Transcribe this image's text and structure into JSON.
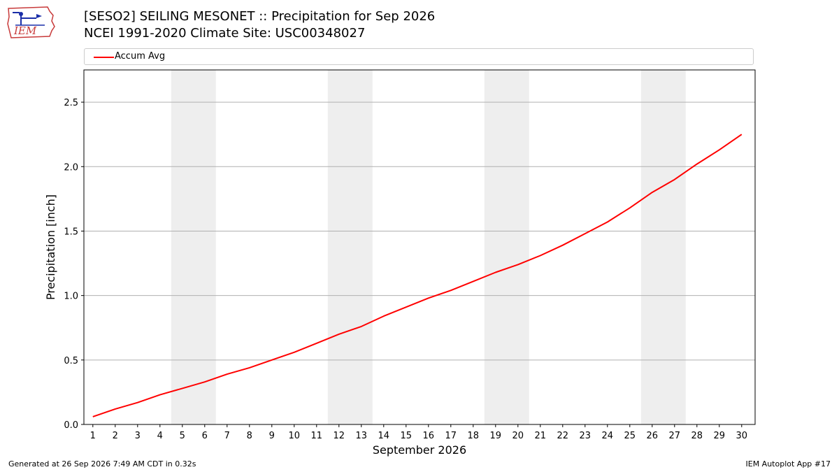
{
  "header": {
    "title_line1": "[SESO2] SEILING MESONET :: Precipitation for Sep 2026",
    "title_line2": "NCEI 1991-2020 Climate Site: USC00348027"
  },
  "logo": {
    "text": "IEM",
    "icon": "iem-iowa-logo"
  },
  "footer": {
    "generated": "Generated at 26 Sep 2026 7:49 AM CDT in 0.32s",
    "app": "IEM Autoplot App #17"
  },
  "chart_data": {
    "type": "line",
    "xlabel": "September 2026",
    "ylabel": "Precipitation [inch]",
    "x": [
      1,
      2,
      3,
      4,
      5,
      6,
      7,
      8,
      9,
      10,
      11,
      12,
      13,
      14,
      15,
      16,
      17,
      18,
      19,
      20,
      21,
      22,
      23,
      24,
      25,
      26,
      27,
      28,
      29,
      30
    ],
    "xlim": [
      0.6,
      30.6
    ],
    "ylim": [
      0,
      2.75
    ],
    "yticks": [
      0.0,
      0.5,
      1.0,
      1.5,
      2.0,
      2.5
    ],
    "ytick_labels": [
      "0.0",
      "0.5",
      "1.0",
      "1.5",
      "2.0",
      "2.5"
    ],
    "grid": "horizontal",
    "legend_position": "top",
    "weekend_shading": [
      [
        5,
        6
      ],
      [
        12,
        13
      ],
      [
        19,
        20
      ],
      [
        26,
        27
      ]
    ],
    "colors": {
      "line": "#ff0000",
      "shade": "#eeeeee",
      "grid": "#b0b0b0"
    },
    "series": [
      {
        "name": "Accum Avg",
        "values": [
          0.06,
          0.12,
          0.17,
          0.23,
          0.28,
          0.33,
          0.39,
          0.44,
          0.5,
          0.56,
          0.63,
          0.7,
          0.76,
          0.84,
          0.91,
          0.98,
          1.04,
          1.11,
          1.18,
          1.24,
          1.31,
          1.39,
          1.48,
          1.57,
          1.68,
          1.8,
          1.9,
          2.02,
          2.13,
          2.25
        ]
      }
    ]
  }
}
